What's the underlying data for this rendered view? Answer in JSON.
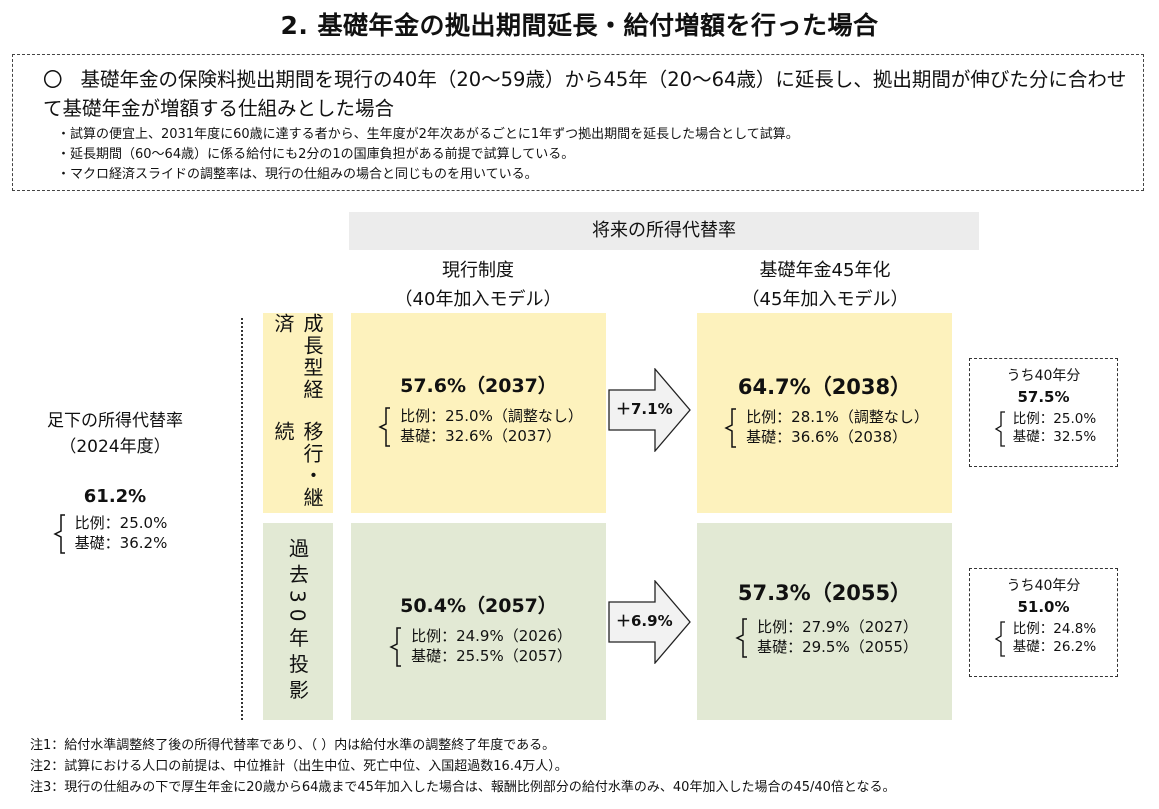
{
  "title": "2. 基礎年金の拠出期間延長・給付増額を行った場合",
  "summary": {
    "bullet_symbol": "〇",
    "main": "基礎年金の保険料拠出期間を現行の40年（20～59歳）から45年（20～64歳）に延長し、拠出期間が伸びた分に合わせて基礎年金が増額する仕組みとした場合",
    "points": [
      "試算の便宜上、2031年度に60歳に達する者から、生年度が2年次あがるごとに1年ずつ拠出期間を延長した場合として試算。",
      "延長期間（60～64歳）に係る給付にも2分の1の国庫負担がある前提で試算している。",
      "マクロ経済スライドの調整率は、現行の仕組みの場合と同じものを用いている。"
    ]
  },
  "future_header": "将来の所得代替率",
  "columns": [
    {
      "line1": "現行制度",
      "line2": "（40年加入モデル）"
    },
    {
      "line1": "基礎年金45年化",
      "line2": "（45年加入モデル）"
    }
  ],
  "current": {
    "label1": "足下の所得代替率",
    "label2": "（2024年度）",
    "value": "61.2%",
    "prop": "比例：25.0%",
    "basic": "基礎：36.2%"
  },
  "rows": [
    {
      "label_col1": "成長型経済",
      "label_col2": "移行・継続",
      "current_model": {
        "value": "57.6%（2037）",
        "prop": "比例：25.0%（調整なし）",
        "basic": "基礎：32.6%（2037）"
      },
      "increase": "＋7.1%",
      "new_model": {
        "value": "64.7%（2038）",
        "prop": "比例：28.1%（調整なし）",
        "basic": "基礎：36.6%（2038）"
      },
      "of40": {
        "head": "うち40年分",
        "value": "57.5%",
        "prop": "比例：25.0%",
        "basic": "基礎：32.5%"
      }
    },
    {
      "label_col1": "過去30年投影",
      "label_col2": "",
      "current_model": {
        "value": "50.4%（2057）",
        "prop": "比例：24.9%（2026）",
        "basic": "基礎：25.5%（2057）"
      },
      "increase": "＋6.9%",
      "new_model": {
        "value": "57.3%（2055）",
        "prop": "比例：27.9%（2027）",
        "basic": "基礎：29.5%（2055）"
      },
      "of40": {
        "head": "うち40年分",
        "value": "51.0%",
        "prop": "比例：24.8%",
        "basic": "基礎：26.2%"
      }
    }
  ],
  "notes": [
    "注1：給付水準調整終了後の所得代替率であり、（ ）内は給付水準の調整終了年度である。",
    "注2：試算における人口の前提は、中位推計（出生中位、死亡中位、入国超過数16.4万人）。",
    "注3：現行の仕組みの下で厚生年金に20歳から64歳まで45年加入した場合は、報酬比例部分の給付水準のみ、40年加入した場合の45/40倍となる。"
  ],
  "colors": {
    "growth_row": "#fdf2bd",
    "past_row": "#e2e9d4",
    "header_gray": "#ececec",
    "arrow_fill": "#f2f2f2"
  }
}
